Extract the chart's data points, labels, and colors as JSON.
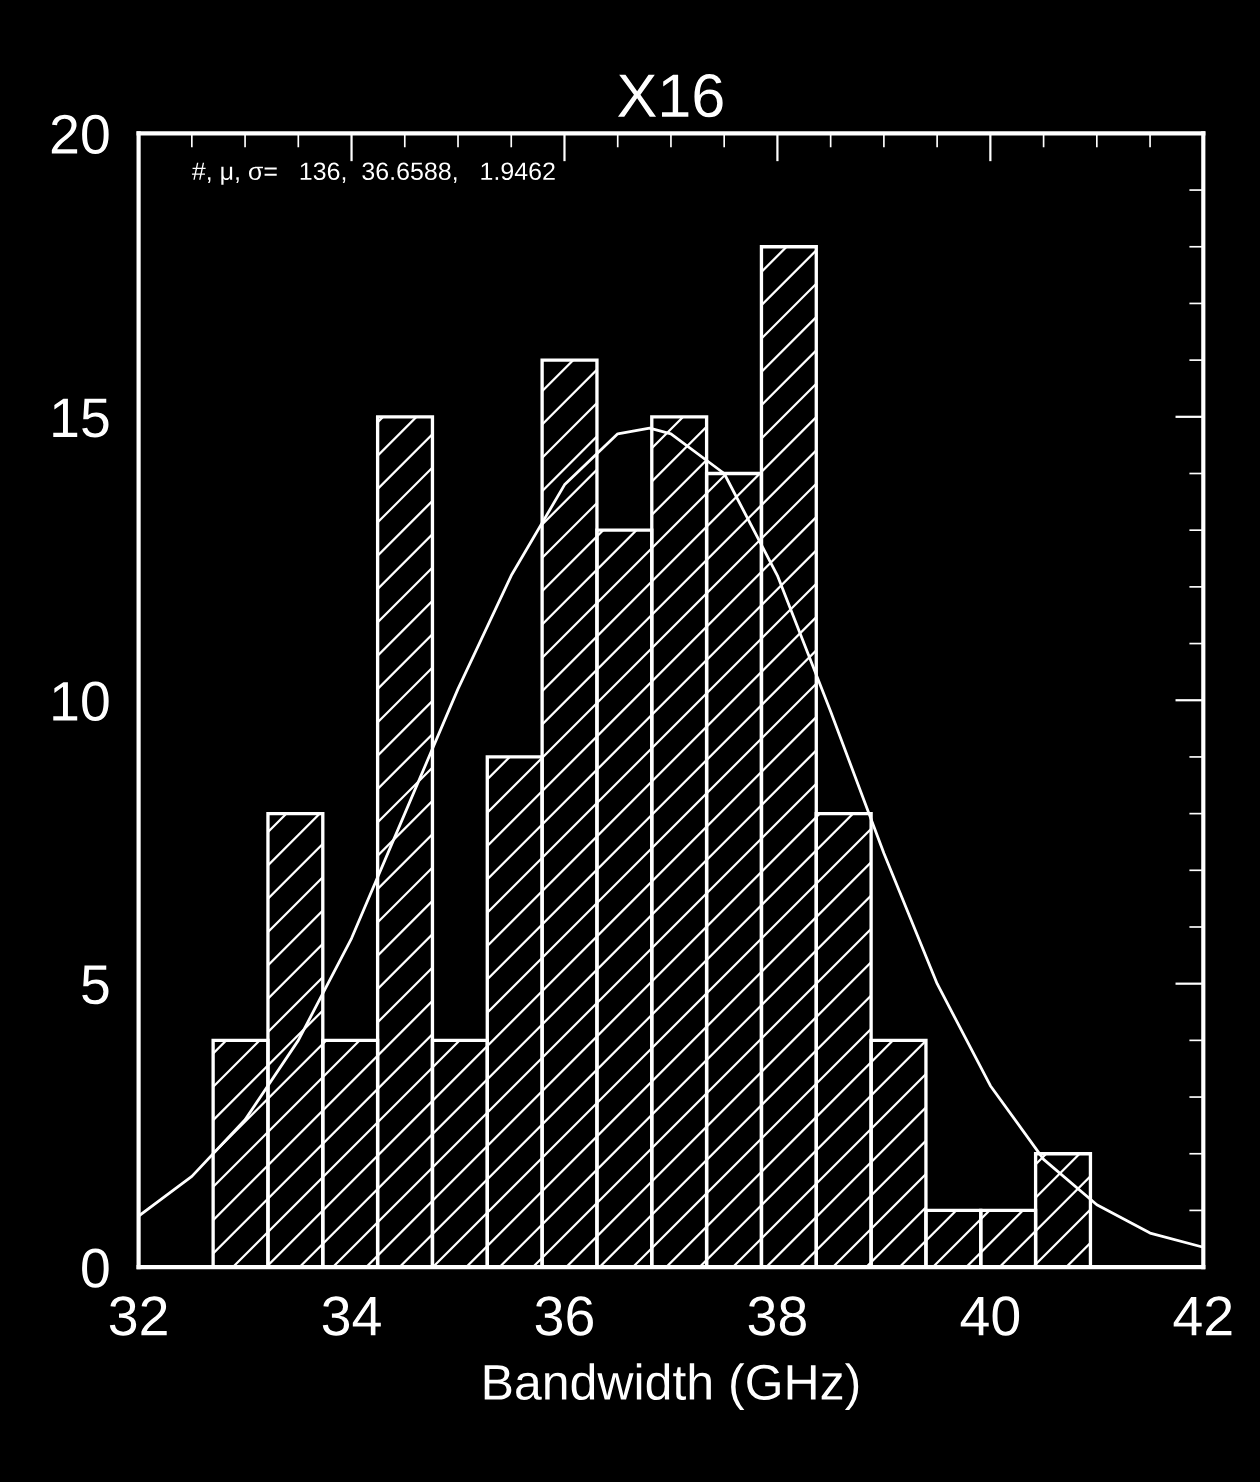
{
  "chart_data": {
    "type": "histogram",
    "title": "X16",
    "xlabel": "Bandwidth (GHz)",
    "annotations": [
      "#, μ, σ=   136,  36.6588,   1.9462"
    ],
    "bins": [
      32.7,
      33.215,
      33.73,
      34.245,
      34.76,
      35.275,
      35.79,
      36.305,
      36.82,
      37.335,
      37.85,
      38.365,
      38.88,
      39.395,
      39.91,
      40.425,
      40.94
    ],
    "series": [
      {
        "color": "#ffffff",
        "values": [
          4,
          8,
          4,
          15,
          4,
          9,
          16,
          13,
          15,
          14,
          18,
          8,
          4,
          1,
          1,
          2
        ]
      },
      {
        "type": "line",
        "color": "#ffffff",
        "x": [
          32,
          32.5,
          33,
          33.5,
          34,
          34.5,
          35,
          35.5,
          36,
          36.5,
          36.8,
          37,
          37.5,
          38,
          38.5,
          39,
          39.5,
          40,
          40.5,
          41,
          41.5,
          42
        ],
        "values": [
          0.9,
          1.6,
          2.6,
          4.0,
          5.8,
          8.0,
          10.2,
          12.2,
          13.8,
          14.7,
          14.8,
          14.7,
          14.0,
          12.2,
          9.8,
          7.3,
          5.0,
          3.2,
          1.9,
          1.1,
          0.6,
          0.35
        ]
      }
    ],
    "xlim": [
      32,
      42
    ],
    "ylim": [
      0,
      20
    ],
    "xticks": [
      32,
      34,
      36,
      38,
      40,
      42
    ],
    "yticks": [
      0,
      5,
      10,
      15,
      20
    ],
    "grid": false,
    "legend": false
  }
}
